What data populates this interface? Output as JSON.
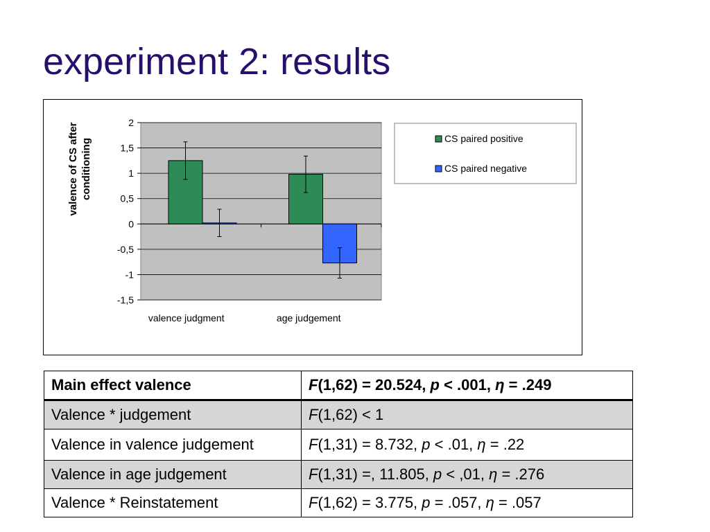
{
  "slide": {
    "title": "experiment 2: results"
  },
  "chart_data": {
    "type": "bar",
    "categories": [
      "valence judgment",
      "age judgement"
    ],
    "series": [
      {
        "name": "CS paired positive",
        "color": "#2e8b57",
        "values": [
          1.25,
          0.98
        ],
        "error": [
          0.37,
          0.36
        ]
      },
      {
        "name": "CS paired negative",
        "color": "#3366ff",
        "values": [
          0.02,
          -0.77
        ],
        "error": [
          0.27,
          0.3
        ]
      }
    ],
    "ylabel": "valence of CS after conditioning",
    "ylim": [
      -1.5,
      2
    ],
    "yticks": [
      "2",
      "1,5",
      "1",
      "0,5",
      "0",
      "-0,5",
      "-1",
      "-1,5"
    ],
    "plot_background": "#c0c0c0",
    "legend_position": "right"
  },
  "table": {
    "header": {
      "label": "Main effect valence",
      "stat": {
        "f": "F",
        "f_args": "(1,62) = 20.524, ",
        "p": "p",
        "p_rest": " < .001, ",
        "eta": "η",
        "eta_rest": " = .249"
      }
    },
    "rows": [
      {
        "label": "Valence * judgement",
        "f": "F",
        "rest": "(1,62) < 1"
      },
      {
        "label": "Valence in valence judgement",
        "f": "F",
        "f_args": "(1,31) = 8.732, ",
        "p": "p",
        "p_rest": " < .01, ",
        "eta": "η",
        "eta_rest": " = .22"
      },
      {
        "label": "Valence in age judgement",
        "f": "F",
        "f_args": "(1,31) =, 11.805, ",
        "p": "p",
        "p_rest": " < ,01, ",
        "eta": "η",
        "eta_rest": " = .276"
      },
      {
        "label": "Valence * Reinstatement",
        "f": "F",
        "f_args": "(1,62) = 3.775, ",
        "p": "p",
        "p_rest": " = .057, ",
        "eta": "η",
        "eta_rest": " = .057"
      }
    ]
  }
}
